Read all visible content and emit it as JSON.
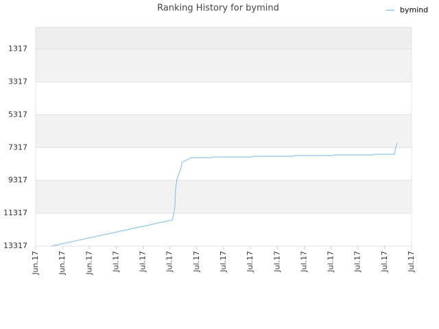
{
  "chart_data": {
    "type": "line",
    "title": "Ranking History for bymind",
    "xlim": [
      0,
      14
    ],
    "xticks": [
      {
        "value": 0,
        "label": "Jun.17"
      },
      {
        "value": 1,
        "label": "Jun.17"
      },
      {
        "value": 2,
        "label": "Jun.17"
      },
      {
        "value": 3,
        "label": "Jul.17"
      },
      {
        "value": 4,
        "label": "Jul.17"
      },
      {
        "value": 5,
        "label": "Jul.17"
      },
      {
        "value": 6,
        "label": "Jul.17"
      },
      {
        "value": 7,
        "label": "Jul.17"
      },
      {
        "value": 8,
        "label": "Jul.17"
      },
      {
        "value": 9,
        "label": "Jul.17"
      },
      {
        "value": 10,
        "label": "Jul.17"
      },
      {
        "value": 11,
        "label": "Jul.17"
      },
      {
        "value": 12,
        "label": "Jul.17"
      },
      {
        "value": 13,
        "label": "Jul.17"
      },
      {
        "value": 14,
        "label": "Jul.17"
      }
    ],
    "ylim": [
      13317,
      0
    ],
    "yticks": [
      1317,
      3317,
      5317,
      7317,
      9317,
      11317,
      13317
    ],
    "grid": true,
    "legend": "top-right",
    "x": [
      0.59,
      5.08,
      5.14,
      5.19,
      5.21,
      5.26,
      5.37,
      5.42,
      5.44,
      5.8,
      6.54,
      6.59,
      8.07,
      8.12,
      9.58,
      9.63,
      11.06,
      11.11,
      12.57,
      12.62,
      13.36,
      13.41,
      13.46
    ],
    "series": [
      {
        "name": "bymind",
        "color": "#8ec5ee",
        "values": [
          13317,
          11730,
          11396,
          10854,
          9810,
          9267,
          8766,
          8516,
          8224,
          7931,
          7931,
          7890,
          7890,
          7848,
          7848,
          7806,
          7806,
          7765,
          7765,
          7723,
          7723,
          7305,
          7055
        ]
      }
    ]
  }
}
